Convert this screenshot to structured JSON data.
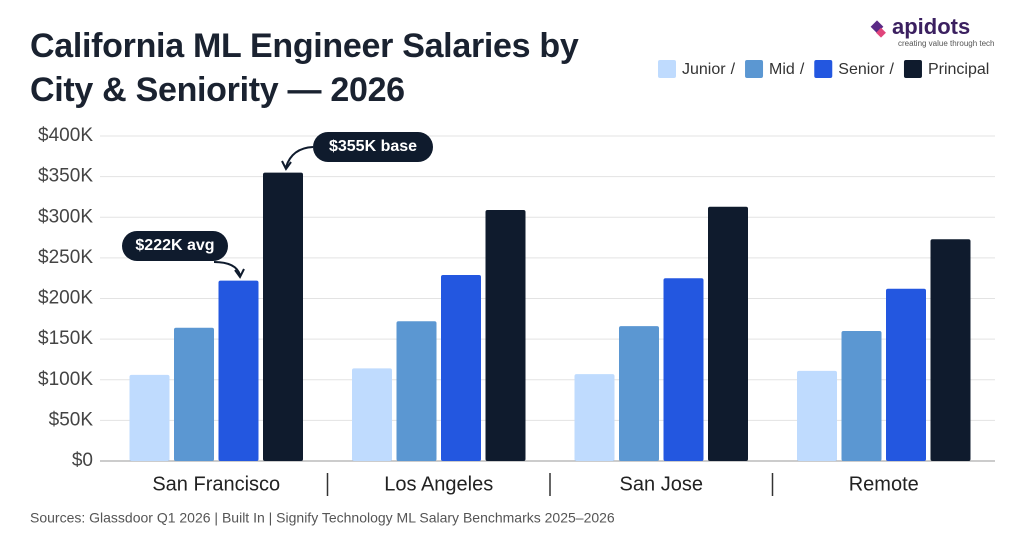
{
  "chart_data": {
    "type": "bar",
    "title": "California ML Engineer Salaries by City & Seniority — 2026",
    "brand": "apidots",
    "tagline": "creating value through tech",
    "legend_separator": "/",
    "categories": [
      "San Francisco",
      "Los Angeles",
      "San Jose",
      "Remote"
    ],
    "series": [
      {
        "name": "Junior",
        "color": "#bfdbfe",
        "values": [
          106000,
          114000,
          107000,
          111000
        ]
      },
      {
        "name": "Mid",
        "color": "#5b97d2",
        "values": [
          164000,
          172000,
          166000,
          160000
        ]
      },
      {
        "name": "Senior",
        "color": "#2357e0",
        "values": [
          222000,
          229000,
          225000,
          212000
        ]
      },
      {
        "name": "Principal",
        "color": "#0f1b2d",
        "values": [
          355000,
          309000,
          313000,
          273000
        ]
      }
    ],
    "ylim": [
      0,
      400000
    ],
    "yticks": [
      {
        "value": 0,
        "label": "$0"
      },
      {
        "value": 50000,
        "label": "$50K"
      },
      {
        "value": 100000,
        "label": "$100K"
      },
      {
        "value": 150000,
        "label": "$150K"
      },
      {
        "value": 200000,
        "label": "$200K"
      },
      {
        "value": 250000,
        "label": "$250K"
      },
      {
        "value": 300000,
        "label": "$300K"
      },
      {
        "value": 350000,
        "label": "$350K"
      },
      {
        "value": 400000,
        "label": "$400K"
      }
    ],
    "grid": true,
    "annotations": [
      "$222K avg",
      "$355K base"
    ],
    "source": "Sources: Glassdoor Q1 2026 | Built In | Signify Technology ML Salary Benchmarks 2025–2026"
  }
}
